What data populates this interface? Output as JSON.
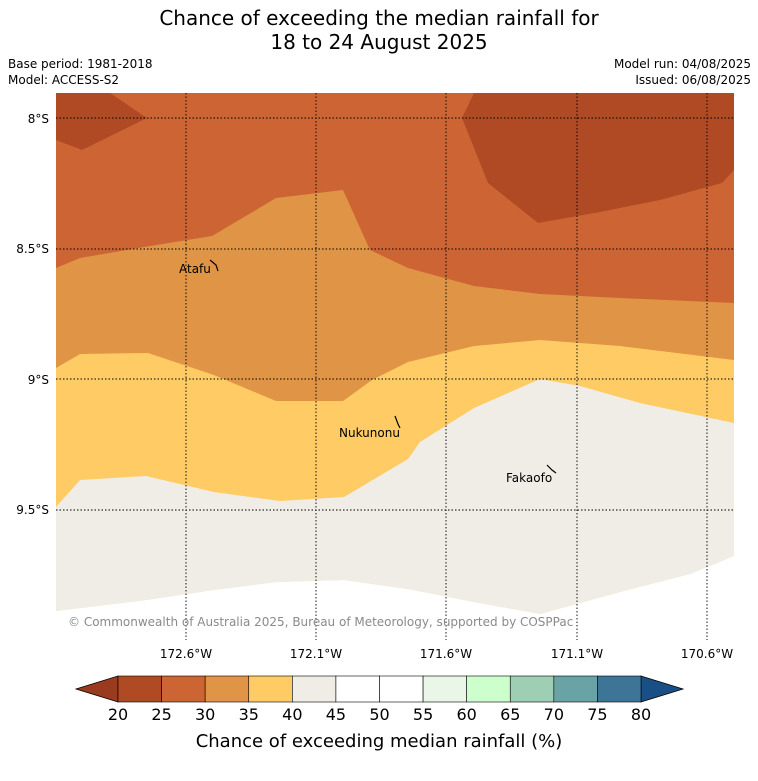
{
  "title_line1": "Chance of exceeding the median rainfall for",
  "title_line2": "18 to 24 August 2025",
  "base_period": "Base period: 1981-2018",
  "model": "Model: ACCESS-S2",
  "model_run": "Model run: 04/08/2025",
  "issued": "Issued: 06/08/2025",
  "copyright": "© Commonwealth of Australia 2025, Bureau of Meteorology, supported by COSPPac",
  "lat_labels": [
    "8°S",
    "8.5°S",
    "9°S",
    "9.5°S"
  ],
  "lon_labels": [
    "172.6°W",
    "172.1°W",
    "171.6°W",
    "171.1°W",
    "170.6°W"
  ],
  "places": [
    {
      "name": "Atafu"
    },
    {
      "name": "Nukunonu"
    },
    {
      "name": "Fakaofo"
    }
  ],
  "colorbar": {
    "title": "Chance of exceeding median rainfall (%)",
    "ticks": [
      "20",
      "25",
      "30",
      "35",
      "40",
      "45",
      "50",
      "55",
      "60",
      "65",
      "70",
      "75",
      "80"
    ],
    "colors": [
      "#b04a24",
      "#cc6533",
      "#e09445",
      "#fecb65",
      "#f0ece6",
      "#ffffff",
      "#ffffff",
      "#eaf6e8",
      "#ccffcc",
      "#9ecfb5",
      "#6aa3a6",
      "#3e7597"
    ],
    "under_color": "#9a3a1e",
    "over_color": "#1a4f86"
  },
  "region_colors": {
    "c20_25": "#b04a24",
    "c25_30": "#cc6533",
    "c30_35": "#e09445",
    "c35_40": "#fecb65",
    "c40_45": "#f0ece6"
  }
}
